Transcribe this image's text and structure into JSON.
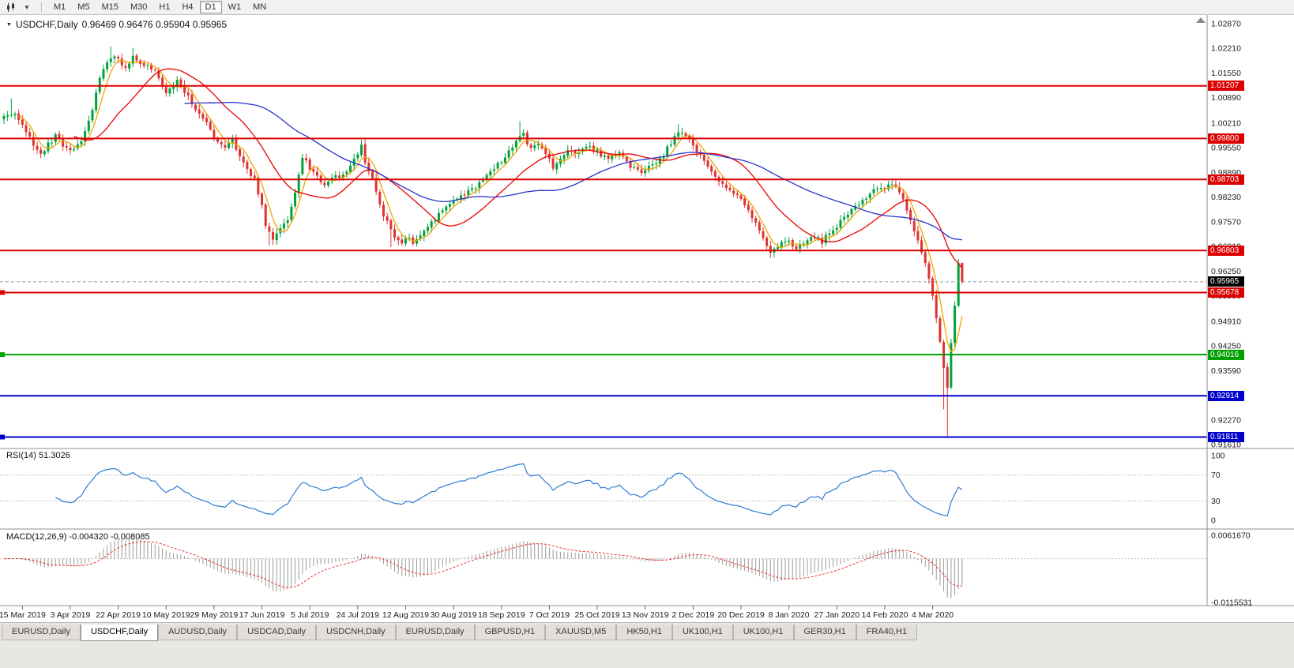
{
  "toolbar": {
    "timeframes": [
      "M1",
      "M5",
      "M15",
      "M30",
      "H1",
      "H4",
      "D1",
      "W1",
      "MN"
    ],
    "active_timeframe": "D1"
  },
  "chart": {
    "symbol": "USDCHF,Daily",
    "ohlc": "0.96469 0.96476 0.95904 0.95965"
  },
  "indicators": {
    "rsi": {
      "label": "RSI(14) 51.3026"
    },
    "macd": {
      "label": "MACD(12,26,9) -0.004320 -0.008085"
    }
  },
  "tabs": {
    "items": [
      "EURUSD,Daily",
      "USDCHF,Daily",
      "AUDUSD,Daily",
      "USDCAD,Daily",
      "USDCNH,Daily",
      "EURUSD,Daily",
      "GBPUSD,H1",
      "XAUUSD,M5",
      "HK50,H1",
      "UK100,H1",
      "UK100,H1",
      "GER30,H1",
      "FRA40,H1"
    ],
    "active_index": 1
  },
  "chart_data": {
    "type": "candlestick",
    "symbol": "USDCHF",
    "timeframe": "Daily",
    "last_ohlc": {
      "open": 0.96469,
      "high": 0.96476,
      "low": 0.95904,
      "close": 0.95965
    },
    "candle_count": 261,
    "x_label_first_index": 5,
    "x_label_step": 13,
    "x_axis_labels": [
      "15 Mar 2019",
      "3 Apr 2019",
      "22 Apr 2019",
      "10 May 2019",
      "29 May 2019",
      "17 Jun 2019",
      "5 Jul 2019",
      "24 Jul 2019",
      "12 Aug 2019",
      "30 Aug 2019",
      "18 Sep 2019",
      "7 Oct 2019",
      "25 Oct 2019",
      "13 Nov 2019",
      "2 Dec 2019",
      "20 Dec 2019",
      "8 Jan 2020",
      "27 Jan 2020",
      "14 Feb 2020",
      "4 Mar 2020"
    ],
    "y_axis_labels": [
      "1.02870",
      "1.02210",
      "1.01550",
      "1.00890",
      "1.00210",
      "0.99550",
      "0.98890",
      "0.98230",
      "0.97570",
      "0.96910",
      "0.96250",
      "0.95590",
      "0.94910",
      "0.94250",
      "0.93590",
      "0.92930",
      "0.92270",
      "0.91610"
    ],
    "horizontal_levels": [
      {
        "value": 1.01207,
        "label": "1.01207",
        "color": "#dd0000",
        "marker": false
      },
      {
        "value": 0.998,
        "label": "0.99800",
        "color": "#dd0000",
        "marker": false
      },
      {
        "value": 0.98703,
        "label": "0.98703",
        "color": "#dd0000",
        "marker": false
      },
      {
        "value": 0.96803,
        "label": "0.96803",
        "color": "#dd0000",
        "marker": false
      },
      {
        "value": 0.95678,
        "label": "0.95678",
        "color": "#dd0000",
        "marker": true
      },
      {
        "value": 0.94016,
        "label": "0.94016",
        "color": "#00a000",
        "marker": true
      },
      {
        "value": 0.92914,
        "label": "0.92914",
        "color": "#0000cc",
        "marker": false
      },
      {
        "value": 0.91811,
        "label": "0.91811",
        "color": "#0000cc",
        "marker": true
      }
    ],
    "current_price": {
      "value": 0.95965,
      "label": "0.95965",
      "color": "#000000"
    },
    "moving_averages": [
      {
        "period": 5,
        "color": "#f0a500"
      },
      {
        "period": 20,
        "color": "#ee0000"
      },
      {
        "period": 50,
        "color": "#2a35c8"
      }
    ],
    "rsi": {
      "period": 14,
      "current": 51.3026,
      "levels": [
        70,
        30
      ],
      "axis": [
        {
          "v": 100,
          "label": "100"
        },
        {
          "v": 70,
          "label": "70"
        },
        {
          "v": 30,
          "label": "30"
        },
        {
          "v": 0,
          "label": "0"
        }
      ]
    },
    "macd": {
      "fast": 12,
      "slow": 26,
      "signal": 9,
      "current_main": -0.00432,
      "current_signal": -0.008085,
      "axis": [
        {
          "v": 0.006167,
          "label": "0.0061670"
        },
        {
          "v": -0.0115531,
          "label": "-0.0115531"
        }
      ]
    },
    "price_trend_anchors": [
      [
        0,
        1.0035
      ],
      [
        3,
        1.0048
      ],
      [
        6,
        0.9995
      ],
      [
        10,
        0.9938
      ],
      [
        14,
        0.9988
      ],
      [
        18,
        0.9942
      ],
      [
        21,
        0.9975
      ],
      [
        24,
        1.006
      ],
      [
        26,
        1.014
      ],
      [
        28,
        1.019
      ],
      [
        31,
        1.0195
      ],
      [
        33,
        1.017
      ],
      [
        35,
        1.0205
      ],
      [
        37,
        1.0185
      ],
      [
        40,
        1.017
      ],
      [
        42,
        1.0145
      ],
      [
        44,
        1.01
      ],
      [
        47,
        1.013
      ],
      [
        50,
        1.009
      ],
      [
        53,
        1.004
      ],
      [
        56,
        1.0005
      ],
      [
        57,
        0.9985
      ],
      [
        60,
        0.995
      ],
      [
        62,
        0.9975
      ],
      [
        65,
        0.9915
      ],
      [
        68,
        0.987
      ],
      [
        70,
        0.98
      ],
      [
        71,
        0.974
      ],
      [
        73,
        0.9715
      ],
      [
        75,
        0.9735
      ],
      [
        77,
        0.9765
      ],
      [
        79,
        0.984
      ],
      [
        81,
        0.993
      ],
      [
        84,
        0.989
      ],
      [
        87,
        0.9855
      ],
      [
        90,
        0.9875
      ],
      [
        93,
        0.9895
      ],
      [
        96,
        0.9935
      ],
      [
        97,
        0.996
      ],
      [
        98,
        0.992
      ],
      [
        100,
        0.987
      ],
      [
        102,
        0.98
      ],
      [
        104,
        0.9755
      ],
      [
        106,
        0.972
      ],
      [
        108,
        0.9705
      ],
      [
        109,
        0.972
      ],
      [
        111,
        0.97
      ],
      [
        113,
        0.9725
      ],
      [
        115,
        0.9745
      ],
      [
        118,
        0.9775
      ],
      [
        121,
        0.98
      ],
      [
        124,
        0.9825
      ],
      [
        127,
        0.9845
      ],
      [
        130,
        0.987
      ],
      [
        133,
        0.99
      ],
      [
        136,
        0.993
      ],
      [
        139,
        0.9975
      ],
      [
        141,
        0.999
      ],
      [
        143,
        0.995
      ],
      [
        145,
        0.9965
      ],
      [
        147,
        0.9935
      ],
      [
        149,
        0.9905
      ],
      [
        151,
        0.993
      ],
      [
        153,
        0.995
      ],
      [
        155,
        0.9935
      ],
      [
        158,
        0.996
      ],
      [
        161,
        0.9945
      ],
      [
        164,
        0.9925
      ],
      [
        167,
        0.9945
      ],
      [
        170,
        0.9905
      ],
      [
        173,
        0.989
      ],
      [
        176,
        0.991
      ],
      [
        179,
        0.9935
      ],
      [
        182,
        0.9985
      ],
      [
        184,
        1.0
      ],
      [
        186,
        0.9975
      ],
      [
        188,
        0.9945
      ],
      [
        191,
        0.9905
      ],
      [
        194,
        0.987
      ],
      [
        197,
        0.984
      ],
      [
        200,
        0.9815
      ],
      [
        203,
        0.977
      ],
      [
        206,
        0.972
      ],
      [
        208,
        0.9672
      ],
      [
        210,
        0.9695
      ],
      [
        213,
        0.97
      ],
      [
        215,
        0.968
      ],
      [
        217,
        0.97
      ],
      [
        219,
        0.972
      ],
      [
        222,
        0.9705
      ],
      [
        224,
        0.973
      ],
      [
        226,
        0.9745
      ],
      [
        229,
        0.9775
      ],
      [
        232,
        0.9805
      ],
      [
        235,
        0.9835
      ],
      [
        237,
        0.985
      ],
      [
        239,
        0.9845
      ],
      [
        241,
        0.9855
      ],
      [
        243,
        0.984
      ],
      [
        245,
        0.979
      ],
      [
        247,
        0.9735
      ],
      [
        249,
        0.968
      ],
      [
        250,
        0.964
      ],
      [
        251,
        0.96
      ],
      [
        252,
        0.956
      ],
      [
        253,
        0.95
      ],
      [
        254,
        0.943
      ],
      [
        255,
        0.936
      ],
      [
        256,
        0.931
      ],
      [
        257,
        0.943
      ],
      [
        258,
        0.953
      ],
      [
        259,
        0.9645
      ],
      [
        260,
        0.95965
      ]
    ],
    "candle_overrides": {
      "2": {
        "h": 1.0087
      },
      "29": {
        "h": 1.0226
      },
      "35": {
        "h": 1.0222
      },
      "72": {
        "l": 0.9694
      },
      "97": {
        "h": 0.9977
      },
      "105": {
        "l": 0.9689
      },
      "111": {
        "l": 0.9692
      },
      "140": {
        "h": 1.0026
      },
      "183": {
        "h": 1.0018
      },
      "209": {
        "l": 0.9661
      },
      "238": {
        "h": 0.9861
      },
      "255": {
        "l": 0.9255
      },
      "256": {
        "l": 0.9181
      },
      "259": {
        "h": 0.9658
      },
      "260": {
        "o": 0.96469,
        "h": 0.96476,
        "l": 0.95904,
        "c": 0.95965
      }
    },
    "colors": {
      "bull": "#00a33a",
      "bear": "#e03131",
      "rsi_line": "#2b7cd3",
      "macd_hist": "#9a9a9a",
      "macd_signal": "#ee3333",
      "level_dotted": "#c0c0c0",
      "current_price_line": "#9a9a9a",
      "separator": "#8f8f8f",
      "axis_text": "#1c1c1c"
    }
  }
}
